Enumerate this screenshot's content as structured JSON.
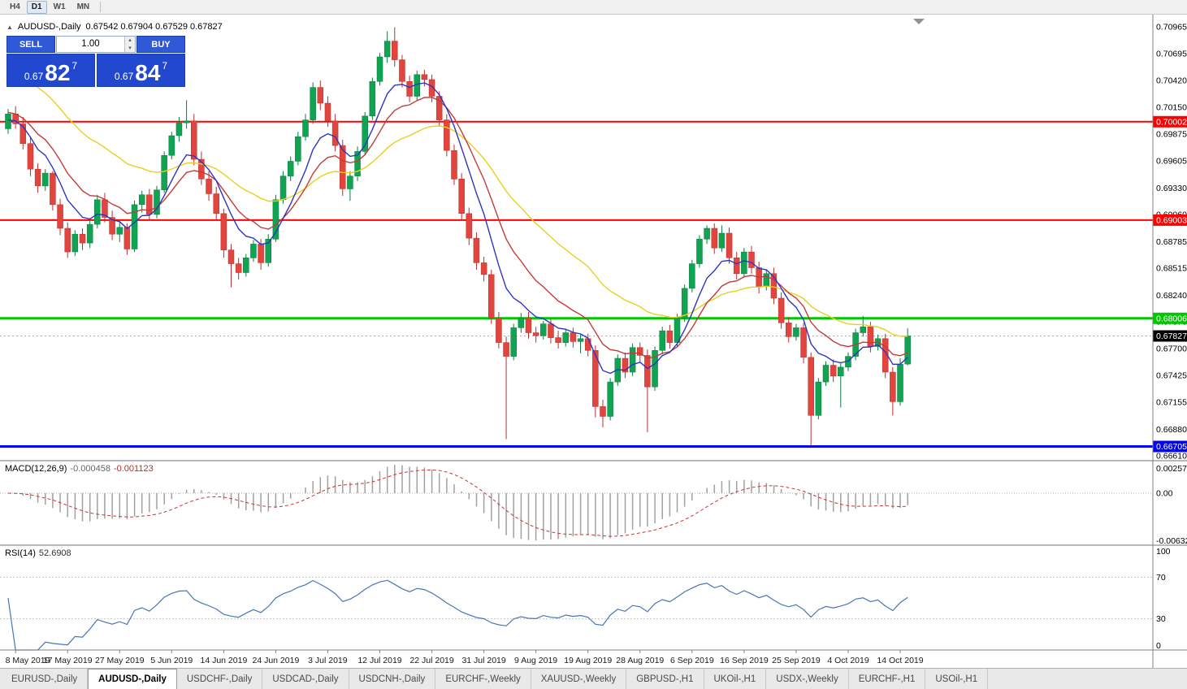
{
  "toolbar": {
    "timeframes": [
      "H4",
      "D1",
      "W1",
      "MN"
    ],
    "active": "D1"
  },
  "title": {
    "caret": "▲",
    "symbol": "AUDUSD-,Daily",
    "ohlc": "0.67542 0.67904 0.67529 0.67827"
  },
  "one_click": {
    "sell_label": "SELL",
    "buy_label": "BUY",
    "volume": "1.00",
    "spinner_up": "▴",
    "spinner_down": "▾",
    "sell_price": {
      "prefix": "0.67",
      "big": "82",
      "sup": "7"
    },
    "buy_price": {
      "prefix": "0.67",
      "big": "84",
      "sup": "7"
    }
  },
  "colors": {
    "bull": "#0fa352",
    "bear": "#e2443e",
    "bull_border": "#0b7a3e",
    "bear_border": "#b5302c",
    "macd_hist": "#a0a0a0",
    "macd_signal": "#cc3333",
    "rsi_line": "#4676b8"
  },
  "chart": {
    "price_axis": [
      "0.70965",
      "0.70695",
      "0.70420",
      "0.70150",
      "0.69875",
      "0.69605",
      "0.69330",
      "0.69060",
      "0.68785",
      "0.68515",
      "0.68240",
      "0.67970",
      "0.67700",
      "0.67425",
      "0.67155",
      "0.66880",
      "0.66610"
    ],
    "hlines": [
      {
        "price": 0.70002,
        "label": "0.70002",
        "color": "#ff0000",
        "thickness": 2
      },
      {
        "price": 0.69003,
        "label": "0.69003",
        "color": "#ff0000",
        "thickness": 2
      },
      {
        "price": 0.68006,
        "label": "0.68006",
        "color": "#00c800",
        "thickness": 3
      },
      {
        "price": 0.66705,
        "label": "0.66705",
        "color": "#0000ff",
        "thickness": 3
      }
    ],
    "current_price": {
      "value": 0.67827,
      "label": "0.67827"
    },
    "moving_averages": [
      {
        "period": 30,
        "seed": 0.706,
        "color": "#e8cf1e"
      },
      {
        "period": 13,
        "seed": 0.701,
        "color": "#c23b3b"
      },
      {
        "period": 7,
        "seed": 0.7,
        "color": "#2d35c0"
      }
    ],
    "date_labels": [
      {
        "index": 1,
        "text": "8 May 2019"
      },
      {
        "index": 8,
        "text": "17 May 2019"
      },
      {
        "index": 15,
        "text": "27 May 2019"
      },
      {
        "index": 22,
        "text": "5 Jun 2019"
      },
      {
        "index": 29,
        "text": "14 Jun 2019"
      },
      {
        "index": 36,
        "text": "24 Jun 2019"
      },
      {
        "index": 43,
        "text": "3 Jul 2019"
      },
      {
        "index": 50,
        "text": "12 Jul 2019"
      },
      {
        "index": 57,
        "text": "22 Jul 2019"
      },
      {
        "index": 64,
        "text": "31 Jul 2019"
      },
      {
        "index": 71,
        "text": "9 Aug 2019"
      },
      {
        "index": 78,
        "text": "19 Aug 2019"
      },
      {
        "index": 85,
        "text": "28 Aug 2019"
      },
      {
        "index": 92,
        "text": "6 Sep 2019"
      },
      {
        "index": 99,
        "text": "16 Sep 2019"
      },
      {
        "index": 106,
        "text": "25 Sep 2019"
      },
      {
        "index": 113,
        "text": "4 Oct 2019"
      },
      {
        "index": 120,
        "text": "14 Oct 2019"
      }
    ],
    "candles": [
      [
        0.6993,
        0.7013,
        0.6988,
        0.7008
      ],
      [
        0.7008,
        0.7016,
        0.6993,
        0.6998
      ],
      [
        0.6998,
        0.7005,
        0.6972,
        0.6978
      ],
      [
        0.6978,
        0.6985,
        0.6945,
        0.6952
      ],
      [
        0.6952,
        0.6958,
        0.6928,
        0.6935
      ],
      [
        0.6935,
        0.6952,
        0.693,
        0.6948
      ],
      [
        0.6948,
        0.695,
        0.691,
        0.6916
      ],
      [
        0.6916,
        0.6922,
        0.6885,
        0.6892
      ],
      [
        0.6892,
        0.6898,
        0.6862,
        0.6868
      ],
      [
        0.6868,
        0.689,
        0.6864,
        0.6886
      ],
      [
        0.6886,
        0.6892,
        0.687,
        0.6877
      ],
      [
        0.6877,
        0.69,
        0.6872,
        0.6896
      ],
      [
        0.6896,
        0.6926,
        0.6892,
        0.6921
      ],
      [
        0.6921,
        0.6928,
        0.6898,
        0.6903
      ],
      [
        0.6903,
        0.691,
        0.688,
        0.6886
      ],
      [
        0.6886,
        0.6898,
        0.6878,
        0.6893
      ],
      [
        0.6893,
        0.6897,
        0.6865,
        0.6871
      ],
      [
        0.6871,
        0.692,
        0.6868,
        0.6916
      ],
      [
        0.6916,
        0.693,
        0.6908,
        0.6926
      ],
      [
        0.6926,
        0.6932,
        0.69,
        0.6906
      ],
      [
        0.6906,
        0.6935,
        0.6902,
        0.6931
      ],
      [
        0.6931,
        0.697,
        0.6928,
        0.6966
      ],
      [
        0.6966,
        0.699,
        0.6962,
        0.6986
      ],
      [
        0.6986,
        0.7005,
        0.698,
        0.6999
      ],
      [
        0.6999,
        0.7022,
        0.6993,
        0.7001
      ],
      [
        0.7001,
        0.7008,
        0.6956,
        0.6962
      ],
      [
        0.6962,
        0.697,
        0.6936,
        0.6942
      ],
      [
        0.6942,
        0.695,
        0.692,
        0.6927
      ],
      [
        0.6927,
        0.6934,
        0.69,
        0.6907
      ],
      [
        0.6907,
        0.6912,
        0.6862,
        0.687
      ],
      [
        0.687,
        0.6876,
        0.6832,
        0.6856
      ],
      [
        0.6856,
        0.6862,
        0.684,
        0.6847
      ],
      [
        0.6847,
        0.6866,
        0.6843,
        0.6862
      ],
      [
        0.6862,
        0.688,
        0.6858,
        0.6876
      ],
      [
        0.6876,
        0.6881,
        0.685,
        0.6857
      ],
      [
        0.6857,
        0.6886,
        0.6853,
        0.6881
      ],
      [
        0.6881,
        0.6926,
        0.6878,
        0.6921
      ],
      [
        0.6921,
        0.695,
        0.6917,
        0.6945
      ],
      [
        0.6945,
        0.6965,
        0.694,
        0.696
      ],
      [
        0.696,
        0.699,
        0.6956,
        0.6985
      ],
      [
        0.6985,
        0.7008,
        0.6981,
        0.7002
      ],
      [
        0.7002,
        0.704,
        0.6998,
        0.7035
      ],
      [
        0.7035,
        0.7042,
        0.7012,
        0.7019
      ],
      [
        0.7019,
        0.7026,
        0.6995,
        0.7001
      ],
      [
        0.7001,
        0.7008,
        0.697,
        0.6976
      ],
      [
        0.6976,
        0.6982,
        0.6925,
        0.6932
      ],
      [
        0.6932,
        0.695,
        0.692,
        0.6945
      ],
      [
        0.6945,
        0.6975,
        0.694,
        0.697
      ],
      [
        0.697,
        0.701,
        0.6966,
        0.7006
      ],
      [
        0.7006,
        0.7045,
        0.7002,
        0.7041
      ],
      [
        0.7041,
        0.707,
        0.7037,
        0.7066
      ],
      [
        0.7066,
        0.7092,
        0.706,
        0.7082
      ],
      [
        0.7082,
        0.7096,
        0.7056,
        0.7063
      ],
      [
        0.7063,
        0.7068,
        0.7035,
        0.7041
      ],
      [
        0.7041,
        0.7047,
        0.702,
        0.7026
      ],
      [
        0.7026,
        0.7052,
        0.7022,
        0.7048
      ],
      [
        0.7048,
        0.7053,
        0.7036,
        0.7043
      ],
      [
        0.7043,
        0.7048,
        0.702,
        0.7026
      ],
      [
        0.7026,
        0.7031,
        0.6996,
        0.7002
      ],
      [
        0.7002,
        0.7008,
        0.6965,
        0.6971
      ],
      [
        0.6971,
        0.6977,
        0.6936,
        0.6942
      ],
      [
        0.6942,
        0.6948,
        0.69,
        0.6907
      ],
      [
        0.6907,
        0.6913,
        0.6875,
        0.6882
      ],
      [
        0.6882,
        0.6888,
        0.685,
        0.6857
      ],
      [
        0.6857,
        0.6863,
        0.6838,
        0.6845
      ],
      [
        0.6845,
        0.685,
        0.6795,
        0.6801
      ],
      [
        0.6801,
        0.6807,
        0.677,
        0.6776
      ],
      [
        0.6776,
        0.6782,
        0.6678,
        0.6762
      ],
      [
        0.6762,
        0.6795,
        0.6758,
        0.6791
      ],
      [
        0.6791,
        0.6806,
        0.6786,
        0.6801
      ],
      [
        0.6801,
        0.6807,
        0.678,
        0.6786
      ],
      [
        0.6786,
        0.6792,
        0.6776,
        0.6783
      ],
      [
        0.6783,
        0.6798,
        0.6779,
        0.6795
      ],
      [
        0.6795,
        0.68,
        0.6775,
        0.6781
      ],
      [
        0.6781,
        0.6788,
        0.677,
        0.6776
      ],
      [
        0.6776,
        0.679,
        0.6772,
        0.6786
      ],
      [
        0.6786,
        0.6791,
        0.6771,
        0.6777
      ],
      [
        0.6777,
        0.6784,
        0.6765,
        0.678
      ],
      [
        0.678,
        0.6785,
        0.6762,
        0.6768
      ],
      [
        0.6768,
        0.6773,
        0.67,
        0.6711
      ],
      [
        0.6711,
        0.6718,
        0.669,
        0.6701
      ],
      [
        0.6701,
        0.674,
        0.6697,
        0.6736
      ],
      [
        0.6736,
        0.6764,
        0.6732,
        0.676
      ],
      [
        0.676,
        0.6766,
        0.674,
        0.6746
      ],
      [
        0.6746,
        0.6775,
        0.6742,
        0.6771
      ],
      [
        0.6771,
        0.6776,
        0.6756,
        0.6763
      ],
      [
        0.6763,
        0.6769,
        0.6685,
        0.6731
      ],
      [
        0.6731,
        0.6772,
        0.6727,
        0.6768
      ],
      [
        0.6768,
        0.6792,
        0.6764,
        0.6788
      ],
      [
        0.6788,
        0.6794,
        0.677,
        0.6776
      ],
      [
        0.6776,
        0.6805,
        0.6772,
        0.6801
      ],
      [
        0.6801,
        0.6835,
        0.6797,
        0.6831
      ],
      [
        0.6831,
        0.686,
        0.6827,
        0.6856
      ],
      [
        0.6856,
        0.6885,
        0.6852,
        0.6881
      ],
      [
        0.6881,
        0.6895,
        0.6876,
        0.6892
      ],
      [
        0.6892,
        0.6897,
        0.6866,
        0.6872
      ],
      [
        0.6872,
        0.6895,
        0.6868,
        0.6887
      ],
      [
        0.6887,
        0.6893,
        0.6856,
        0.6862
      ],
      [
        0.6862,
        0.6868,
        0.684,
        0.6846
      ],
      [
        0.6846,
        0.6872,
        0.6842,
        0.6868
      ],
      [
        0.6868,
        0.6874,
        0.6846,
        0.6852
      ],
      [
        0.6852,
        0.6858,
        0.6826,
        0.6833
      ],
      [
        0.6833,
        0.685,
        0.6829,
        0.6846
      ],
      [
        0.6846,
        0.6852,
        0.6815,
        0.6821
      ],
      [
        0.6821,
        0.6827,
        0.679,
        0.6796
      ],
      [
        0.6796,
        0.6802,
        0.6776,
        0.6782
      ],
      [
        0.6782,
        0.6795,
        0.6778,
        0.6791
      ],
      [
        0.6791,
        0.6796,
        0.6755,
        0.6761
      ],
      [
        0.6761,
        0.6766,
        0.6671,
        0.6702
      ],
      [
        0.6702,
        0.674,
        0.6698,
        0.6736
      ],
      [
        0.6736,
        0.6757,
        0.6732,
        0.6753
      ],
      [
        0.6753,
        0.6759,
        0.6736,
        0.6742
      ],
      [
        0.6742,
        0.6755,
        0.671,
        0.6751
      ],
      [
        0.6751,
        0.6766,
        0.6747,
        0.6762
      ],
      [
        0.6762,
        0.679,
        0.6758,
        0.6786
      ],
      [
        0.6786,
        0.6803,
        0.6782,
        0.6792
      ],
      [
        0.6792,
        0.6797,
        0.6766,
        0.6772
      ],
      [
        0.6772,
        0.6784,
        0.6768,
        0.678
      ],
      [
        0.678,
        0.6785,
        0.674,
        0.6746
      ],
      [
        0.6746,
        0.6751,
        0.6702,
        0.6716
      ],
      [
        0.6716,
        0.676,
        0.6712,
        0.6754
      ],
      [
        0.67542,
        0.67904,
        0.67529,
        0.67827
      ]
    ]
  },
  "macd": {
    "name": "MACD(12,26,9)",
    "value_main": "-0.000458",
    "value_signal": "-0.001123",
    "axis_labels": [
      "0.002574",
      "0.00",
      "-0.006326"
    ]
  },
  "rsi": {
    "name": "RSI(14)",
    "value": "52.6908",
    "axis_labels": [
      "100",
      "70",
      "30",
      "0"
    ],
    "levels": [
      70,
      30
    ]
  },
  "tabs": [
    {
      "label": "EURUSD-,Daily",
      "active": false
    },
    {
      "label": "AUDUSD-,Daily",
      "active": true
    },
    {
      "label": "USDCHF-,Daily",
      "active": false
    },
    {
      "label": "USDCAD-,Daily",
      "active": false
    },
    {
      "label": "USDCNH-,Daily",
      "active": false
    },
    {
      "label": "EURCHF-,Weekly",
      "active": false
    },
    {
      "label": "XAUUSD-,Weekly",
      "active": false
    },
    {
      "label": "GBPUSD-,H1",
      "active": false
    },
    {
      "label": "UKOil-,H1",
      "active": false
    },
    {
      "label": "USDX-,Weekly",
      "active": false
    },
    {
      "label": "EURCHF-,H1",
      "active": false
    },
    {
      "label": "USOil-,H1",
      "active": false
    }
  ]
}
